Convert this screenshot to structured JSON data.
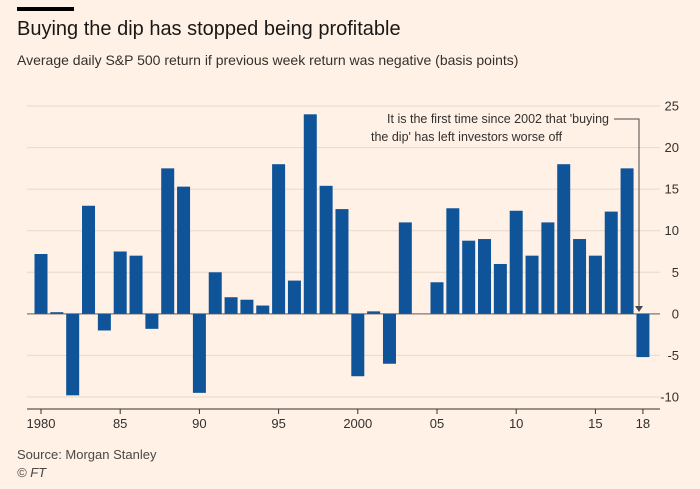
{
  "header": {
    "title": "Buying the dip has stopped being profitable",
    "subtitle": "Average daily S&P 500 return if previous week return was negative (basis points)"
  },
  "footer": {
    "source": "Source: Morgan Stanley",
    "copyright": "© FT"
  },
  "colors": {
    "background": "#fff1e5",
    "bar": "#0f5499",
    "grid": "#e7d8cb",
    "zero_line": "#807973",
    "text": "#33302e"
  },
  "chart_data": {
    "type": "bar",
    "title": "Buying the dip has stopped being profitable",
    "subtitle": "Average daily S&P 500 return if previous week return was negative (basis points)",
    "xlabel": "",
    "ylabel": "",
    "ylim": [
      -10,
      25
    ],
    "y_ticks": [
      25,
      20,
      15,
      10,
      5,
      0,
      -5,
      -10
    ],
    "y_tick_labels": [
      "25",
      "20",
      "15",
      "10",
      "5",
      "0",
      "-5",
      "-10"
    ],
    "y_axis_side": "right",
    "grid": true,
    "categories": [
      1980,
      1981,
      1982,
      1983,
      1984,
      1985,
      1986,
      1987,
      1988,
      1989,
      1990,
      1991,
      1992,
      1993,
      1994,
      1995,
      1996,
      1997,
      1998,
      1999,
      2000,
      2001,
      2002,
      2003,
      2004,
      2005,
      2006,
      2007,
      2008,
      2009,
      2010,
      2011,
      2012,
      2013,
      2014,
      2015,
      2016,
      2017,
      2018
    ],
    "values": [
      7.2,
      0.2,
      -9.8,
      13.0,
      -2.0,
      7.5,
      7.0,
      -1.8,
      17.5,
      15.3,
      -9.5,
      5.0,
      2.0,
      1.7,
      1.0,
      18.0,
      4.0,
      24.0,
      15.4,
      12.6,
      -7.5,
      0.3,
      -6.0,
      11.0,
      0,
      3.8,
      12.7,
      8.8,
      9.0,
      6.0,
      12.4,
      7.0,
      11.0,
      18.0,
      9.0,
      7.0,
      12.3,
      17.5,
      -5.2
    ],
    "x_tick_labels": [
      {
        "year": 1980,
        "label": "1980"
      },
      {
        "year": 1985,
        "label": "85"
      },
      {
        "year": 1990,
        "label": "90"
      },
      {
        "year": 1995,
        "label": "95"
      },
      {
        "year": 2000,
        "label": "2000"
      },
      {
        "year": 2005,
        "label": "05"
      },
      {
        "year": 2010,
        "label": "10"
      },
      {
        "year": 2015,
        "label": "15"
      },
      {
        "year": 2018,
        "label": "18"
      }
    ],
    "annotation": {
      "lines": [
        "It is the first time since 2002 that 'buying",
        "the dip' has left investors worse off"
      ],
      "points_to_year": 2018
    }
  }
}
